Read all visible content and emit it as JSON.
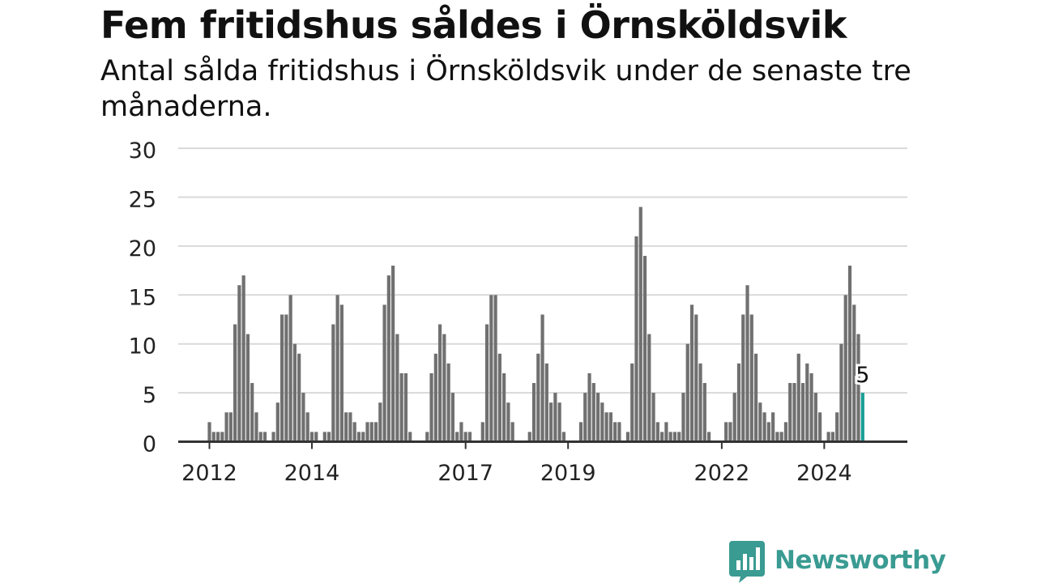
{
  "title": "Fem fritidshus såldes i Örnsköldsvik",
  "subtitle": "Antal sålda fritidshus i Örnsköldsvik under de senaste tre månaderna.",
  "brand": "Newsworthy",
  "colors": {
    "bar": "#707070",
    "highlight": "#1a9e96",
    "grid": "#d9d9d9",
    "brand": "#3a9b92"
  },
  "chart_data": {
    "type": "bar",
    "start": "2012-01",
    "x_ticks": [
      "2012",
      "2014",
      "2017",
      "2019",
      "2022",
      "2024"
    ],
    "y_ticks": [
      0,
      5,
      10,
      15,
      20,
      25,
      30
    ],
    "ylim": [
      0,
      30
    ],
    "values": [
      2,
      1,
      1,
      1,
      3,
      3,
      12,
      16,
      17,
      11,
      6,
      3,
      1,
      1,
      0,
      1,
      4,
      13,
      13,
      15,
      10,
      9,
      5,
      3,
      1,
      1,
      0,
      1,
      1,
      12,
      15,
      14,
      3,
      3,
      2,
      1,
      1,
      2,
      2,
      2,
      4,
      14,
      17,
      18,
      11,
      7,
      7,
      1,
      0,
      0,
      0,
      1,
      7,
      9,
      12,
      11,
      8,
      5,
      1,
      2,
      1,
      1,
      0,
      0,
      2,
      12,
      15,
      15,
      9,
      7,
      4,
      2,
      0,
      0,
      0,
      1,
      6,
      9,
      13,
      8,
      4,
      5,
      4,
      1,
      0,
      0,
      0,
      2,
      5,
      7,
      6,
      5,
      4,
      3,
      3,
      2,
      2,
      0,
      1,
      8,
      21,
      24,
      19,
      11,
      5,
      2,
      1,
      2,
      1,
      1,
      1,
      5,
      10,
      14,
      13,
      8,
      6,
      1,
      0,
      0,
      0,
      2,
      2,
      5,
      8,
      13,
      16,
      13,
      9,
      4,
      3,
      2,
      3,
      1,
      1,
      2,
      6,
      6,
      9,
      6,
      8,
      7,
      5,
      3,
      0,
      1,
      1,
      3,
      10,
      15,
      18,
      14,
      11,
      5
    ],
    "highlight_last": true,
    "last_label": "5",
    "grid": true,
    "legend": "none"
  }
}
